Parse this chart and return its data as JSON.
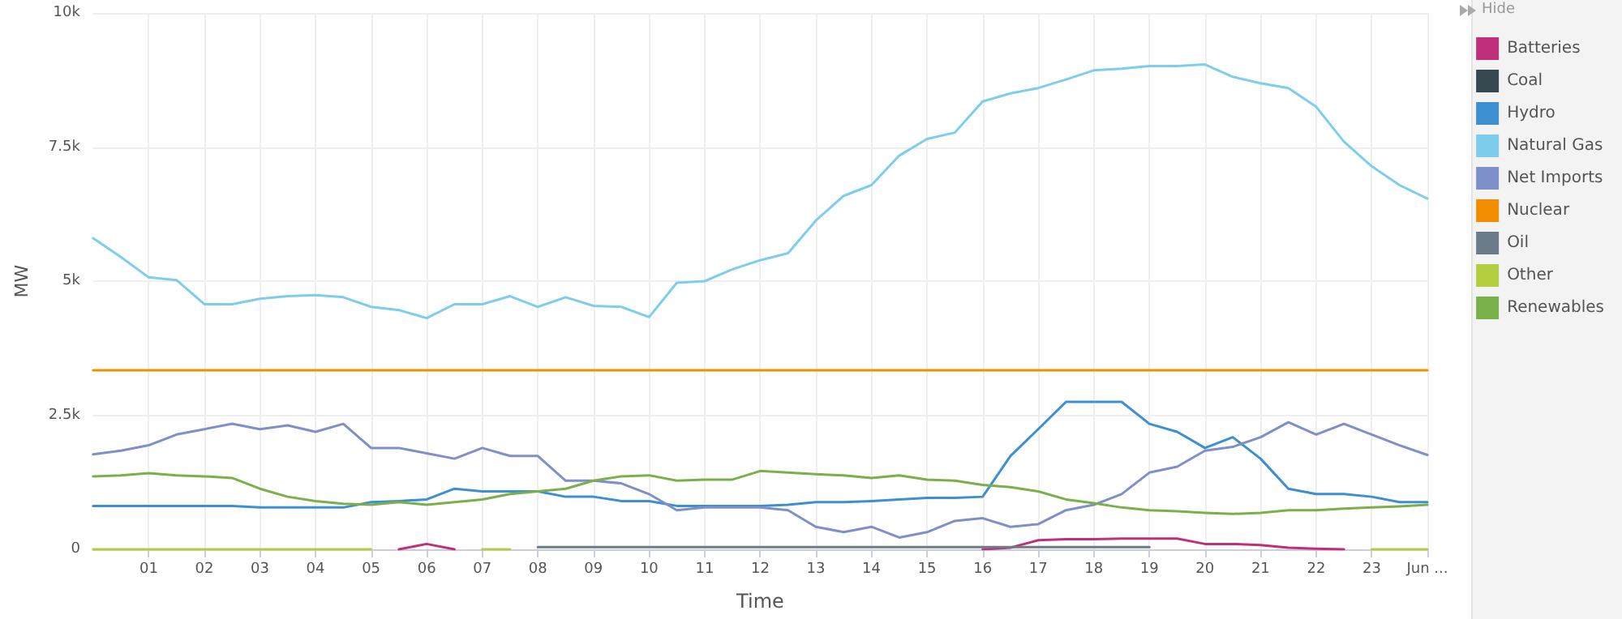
{
  "chart_data": {
    "type": "line",
    "xlabel": "Time",
    "ylabel": "MW",
    "annotations": [
      "Hide"
    ],
    "legend": "right",
    "grid": true,
    "marker": "none",
    "line_style": "solid",
    "xlim": [
      0,
      24
    ],
    "xticks": [
      {
        "value": 1,
        "label": "01"
      },
      {
        "value": 2,
        "label": "02"
      },
      {
        "value": 3,
        "label": "03"
      },
      {
        "value": 4,
        "label": "04"
      },
      {
        "value": 5,
        "label": "05"
      },
      {
        "value": 6,
        "label": "06"
      },
      {
        "value": 7,
        "label": "07"
      },
      {
        "value": 8,
        "label": "08"
      },
      {
        "value": 9,
        "label": "09"
      },
      {
        "value": 10,
        "label": "10"
      },
      {
        "value": 11,
        "label": "11"
      },
      {
        "value": 12,
        "label": "12"
      },
      {
        "value": 13,
        "label": "13"
      },
      {
        "value": 14,
        "label": "14"
      },
      {
        "value": 15,
        "label": "15"
      },
      {
        "value": 16,
        "label": "16"
      },
      {
        "value": 17,
        "label": "17"
      },
      {
        "value": 18,
        "label": "18"
      },
      {
        "value": 19,
        "label": "19"
      },
      {
        "value": 20,
        "label": "20"
      },
      {
        "value": 21,
        "label": "21"
      },
      {
        "value": 22,
        "label": "22"
      },
      {
        "value": 23,
        "label": "23"
      },
      {
        "value": 24,
        "label": "Jun ..."
      }
    ],
    "ylim": [
      0,
      10000
    ],
    "yticks": [
      0,
      {
        "value": 2500,
        "label": "2.5k"
      },
      {
        "value": 5000,
        "label": "5k"
      },
      {
        "value": 7500,
        "label": "7.5k"
      },
      {
        "value": 10000,
        "label": "10k"
      }
    ],
    "x": [
      0,
      0.5,
      1,
      1.5,
      2,
      2.5,
      3,
      3.5,
      4,
      4.5,
      5,
      5.5,
      6,
      6.5,
      7,
      7.5,
      8,
      8.5,
      9,
      9.5,
      10,
      10.5,
      11,
      11.5,
      12,
      12.5,
      13,
      13.5,
      14,
      14.5,
      15,
      15.5,
      16,
      16.5,
      17,
      17.5,
      18,
      18.5,
      19,
      19.5,
      20,
      20.5,
      21,
      21.5,
      22,
      22.5,
      23,
      23.5,
      24
    ],
    "series": [
      {
        "name": "Batteries",
        "color": "#c0307a",
        "values": [
          null,
          null,
          null,
          null,
          null,
          null,
          null,
          null,
          null,
          null,
          null,
          0,
          100,
          0,
          null,
          null,
          null,
          null,
          null,
          null,
          null,
          null,
          null,
          null,
          null,
          null,
          null,
          null,
          null,
          null,
          null,
          null,
          0,
          30,
          170,
          190,
          190,
          200,
          200,
          200,
          100,
          100,
          80,
          30,
          10,
          0,
          null,
          null,
          null
        ]
      },
      {
        "name": "Coal",
        "color": "#37474f",
        "values": [
          null,
          null,
          null,
          null,
          null,
          null,
          null,
          null,
          null,
          null,
          null,
          null,
          null,
          null,
          null,
          null,
          null,
          null,
          null,
          null,
          null,
          null,
          null,
          null,
          null,
          null,
          null,
          null,
          null,
          null,
          null,
          null,
          null,
          null,
          null,
          null,
          null,
          null,
          null,
          null,
          null,
          null,
          null,
          null,
          null,
          null,
          null,
          null,
          null
        ]
      },
      {
        "name": "Hydro",
        "color": "#3d8fd1",
        "values": [
          810,
          810,
          810,
          810,
          810,
          810,
          780,
          780,
          780,
          780,
          880,
          900,
          930,
          1130,
          1080,
          1080,
          1080,
          980,
          980,
          900,
          900,
          810,
          810,
          810,
          810,
          830,
          880,
          880,
          900,
          930,
          960,
          960,
          980,
          1740,
          2240,
          2750,
          2750,
          2750,
          2340,
          2190,
          1890,
          2090,
          1690,
          1130,
          1030,
          1030,
          980,
          880,
          880
        ]
      },
      {
        "name": "Natural Gas",
        "color": "#7fcdec",
        "values": [
          5800,
          5450,
          5070,
          5020,
          4570,
          4570,
          4670,
          4720,
          4740,
          4700,
          4520,
          4460,
          4310,
          4570,
          4570,
          4720,
          4520,
          4700,
          4540,
          4520,
          4330,
          4970,
          5000,
          5220,
          5390,
          5520,
          6130,
          6590,
          6790,
          7340,
          7650,
          7770,
          8350,
          8500,
          8600,
          8760,
          8930,
          8960,
          9010,
          9010,
          9040,
          8810,
          8690,
          8600,
          8250,
          7600,
          7140,
          6790,
          6540
        ]
      },
      {
        "name": "Net Imports",
        "color": "#7f8fca",
        "values": [
          1770,
          1840,
          1940,
          2140,
          2240,
          2340,
          2240,
          2310,
          2190,
          2340,
          1890,
          1890,
          1790,
          1690,
          1890,
          1740,
          1740,
          1280,
          1280,
          1230,
          1030,
          730,
          780,
          780,
          780,
          730,
          420,
          320,
          420,
          220,
          320,
          530,
          580,
          420,
          470,
          730,
          830,
          1030,
          1430,
          1540,
          1840,
          1910,
          2090,
          2370,
          2140,
          2340,
          2140,
          1940,
          1760
        ]
      },
      {
        "name": "Nuclear",
        "color": "#f28c00",
        "values": [
          3340,
          3340,
          3340,
          3340,
          3340,
          3340,
          3340,
          3340,
          3340,
          3340,
          3340,
          3340,
          3340,
          3340,
          3340,
          3340,
          3340,
          3340,
          3340,
          3340,
          3340,
          3340,
          3340,
          3340,
          3340,
          3340,
          3340,
          3340,
          3340,
          3340,
          3340,
          3340,
          3340,
          3340,
          3340,
          3340,
          3340,
          3340,
          3340,
          3340,
          3340,
          3340,
          3340,
          3340,
          3340,
          3340,
          3340,
          3340,
          3340
        ]
      },
      {
        "name": "Oil",
        "color": "#6b7b88",
        "values": [
          null,
          null,
          null,
          null,
          null,
          null,
          null,
          null,
          null,
          null,
          null,
          null,
          null,
          null,
          null,
          null,
          40,
          40,
          40,
          40,
          40,
          40,
          40,
          40,
          40,
          40,
          40,
          40,
          40,
          40,
          40,
          40,
          40,
          40,
          40,
          40,
          40,
          40,
          40,
          null,
          null,
          null,
          null,
          null,
          null,
          null,
          null,
          null,
          null
        ]
      },
      {
        "name": "Other",
        "color": "#b3cf3f",
        "values": [
          0,
          0,
          0,
          0,
          0,
          0,
          0,
          0,
          0,
          0,
          0,
          null,
          null,
          null,
          0,
          0,
          null,
          null,
          null,
          null,
          null,
          null,
          null,
          null,
          null,
          null,
          null,
          null,
          null,
          null,
          null,
          null,
          null,
          null,
          null,
          null,
          null,
          null,
          null,
          null,
          null,
          null,
          null,
          null,
          null,
          null,
          0,
          0,
          0
        ]
      },
      {
        "name": "Renewables",
        "color": "#79b04a",
        "values": [
          1360,
          1380,
          1420,
          1380,
          1360,
          1330,
          1130,
          980,
          900,
          850,
          830,
          880,
          830,
          880,
          930,
          1030,
          1080,
          1130,
          1280,
          1360,
          1380,
          1280,
          1300,
          1300,
          1460,
          1430,
          1400,
          1380,
          1330,
          1380,
          1300,
          1280,
          1200,
          1160,
          1080,
          930,
          860,
          780,
          730,
          710,
          680,
          660,
          680,
          730,
          730,
          760,
          780,
          800,
          830
        ]
      }
    ]
  }
}
